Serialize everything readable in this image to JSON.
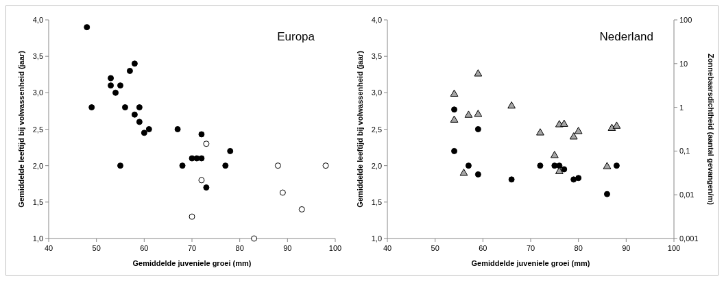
{
  "chart_data": [
    {
      "type": "scatter",
      "title": "Europa",
      "xlabel": "Gemiddelde juveniele groei (mm)",
      "ylabel": "Gemiddelde leeftijd bij volwassenheid (jaar)",
      "xlim": [
        40,
        100
      ],
      "xticks": [
        40,
        50,
        60,
        70,
        80,
        90,
        100
      ],
      "ylim": [
        1,
        4
      ],
      "yticks": [
        {
          "value": 1,
          "label": "1,0"
        },
        {
          "value": 1.5,
          "label": "1,5"
        },
        {
          "value": 2,
          "label": "2,0"
        },
        {
          "value": 2.5,
          "label": "2,5"
        },
        {
          "value": 3,
          "label": "3,0"
        },
        {
          "value": 3.5,
          "label": "3,5"
        },
        {
          "value": 4,
          "label": "4,0"
        }
      ],
      "grid": false,
      "marker": "circle",
      "series": [
        {
          "color": "#000000",
          "x": [
            48,
            49,
            53,
            53,
            54,
            55,
            55,
            56,
            57,
            58,
            58,
            59,
            59,
            60,
            61,
            67,
            68,
            70,
            71,
            72,
            72,
            73,
            77,
            78
          ],
          "values": [
            3.9,
            2.8,
            3.2,
            3.1,
            3.0,
            3.1,
            2.0,
            2.8,
            3.3,
            3.4,
            2.7,
            2.8,
            2.6,
            2.45,
            2.5,
            2.5,
            2.0,
            2.1,
            2.1,
            2.1,
            2.43,
            1.7,
            2.0,
            2.2
          ]
        },
        {
          "color": "#ffffff",
          "x": [
            73,
            72,
            70,
            83,
            88,
            89,
            93,
            98
          ],
          "values": [
            2.3,
            1.8,
            1.3,
            1.0,
            2.0,
            1.63,
            1.4,
            2.0
          ]
        }
      ]
    },
    {
      "type": "scatter",
      "title": "Nederland",
      "xlabel": "Gemiddelde juveniele groei (mm)",
      "ylabel": "Gemiddelde leeftijd bij volwassenheid (jaar)",
      "y2label": "Zonnebaarsdichtheid (aantal gevangen/m)",
      "xlim": [
        40,
        100
      ],
      "xticks": [
        40,
        50,
        60,
        70,
        80,
        90,
        100
      ],
      "ylim": [
        1,
        4
      ],
      "yticks": [
        {
          "value": 1,
          "label": "1,0"
        },
        {
          "value": 1.5,
          "label": "1,5"
        },
        {
          "value": 2,
          "label": "2,0"
        },
        {
          "value": 2.5,
          "label": "2,5"
        },
        {
          "value": 3,
          "label": "3,0"
        },
        {
          "value": 3.5,
          "label": "3,5"
        },
        {
          "value": 4,
          "label": "4,0"
        }
      ],
      "y2lim": [
        0.001,
        100
      ],
      "y2ticks": [
        {
          "value": 0.001,
          "label": "0,001"
        },
        {
          "value": 0.01,
          "label": "0,01"
        },
        {
          "value": 0.1,
          "label": "0,1"
        },
        1,
        10,
        100
      ],
      "log": "y2",
      "grid": false,
      "series": [
        {
          "color": "#000000",
          "marker": "circle",
          "x": [
            54,
            59,
            54,
            57,
            59,
            66,
            72,
            75,
            76,
            77,
            79,
            80,
            86,
            88
          ],
          "values": [
            2.77,
            2.5,
            2.2,
            2.0,
            1.88,
            1.81,
            2.0,
            2.0,
            2.0,
            1.95,
            1.81,
            1.83,
            1.61,
            2.0
          ]
        },
        {
          "color": "#a6a6a6",
          "marker": "triangle",
          "axis": "y2",
          "x": [
            59,
            54,
            57,
            59,
            54,
            66,
            72,
            75,
            76,
            56,
            76,
            77,
            79,
            80,
            86,
            87,
            88
          ],
          "values": [
            5.8,
            2.0,
            0.66,
            0.69,
            0.51,
            1.07,
            0.26,
            0.079,
            0.034,
            0.031,
            0.4,
            0.41,
            0.21,
            0.28,
            0.044,
            0.33,
            0.37
          ]
        }
      ]
    }
  ]
}
